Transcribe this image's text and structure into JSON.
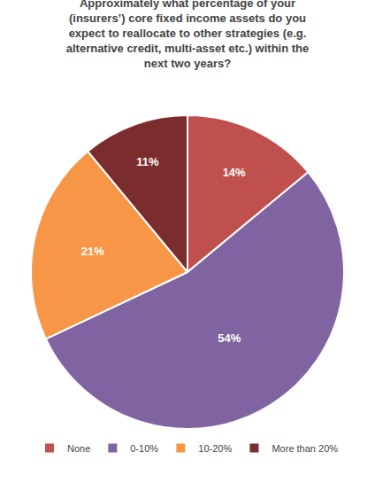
{
  "chart_data": {
    "type": "pie",
    "title": "Approximately what percentage of your\n(insurers’) core fixed income assets do you\nexpect to reallocate to other strategies (e.g.\nalternative credit, multi-asset etc.) within the\nnext two years?",
    "categories": [
      "None",
      "0-10%",
      "10-20%",
      "More than 20%"
    ],
    "values": [
      14,
      54,
      21,
      11
    ],
    "value_labels": [
      "14%",
      "54%",
      "21%",
      "11%"
    ],
    "colors": [
      "#c0504d",
      "#8064a2",
      "#f79646",
      "#7b2c2c"
    ],
    "data_labels": true,
    "legend": "bottom"
  }
}
